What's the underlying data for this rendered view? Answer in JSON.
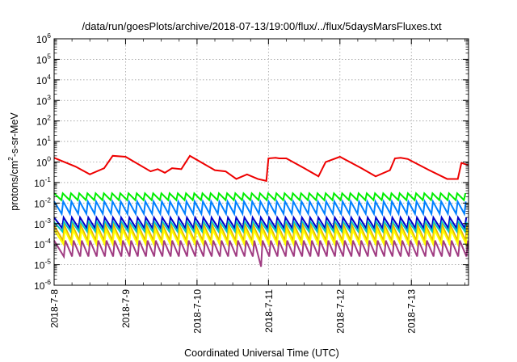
{
  "chart_data": {
    "type": "line",
    "title": "/data/run/goesPlots/archive/2018-07-13/19:00/flux/../flux/5daysMarsFluxes.txt",
    "xlabel": "Coordinated Universal Time (UTC)",
    "ylabel": "protons/cm²-s-sr-MeV",
    "ylabel_parts": [
      "protons/cm",
      "2",
      "-s-sr-MeV"
    ],
    "yscale": "log",
    "ylim": [
      1e-06,
      1000000
    ],
    "xlim_days": [
      0,
      5.8
    ],
    "grid": true,
    "legend": "none",
    "y_ticks": [
      {
        "value": 1e-06,
        "base": "10",
        "exp": "-6"
      },
      {
        "value": 1e-05,
        "base": "10",
        "exp": "-5"
      },
      {
        "value": 0.0001,
        "base": "10",
        "exp": "-4"
      },
      {
        "value": 0.001,
        "base": "10",
        "exp": "-3"
      },
      {
        "value": 0.01,
        "base": "10",
        "exp": "-2"
      },
      {
        "value": 0.1,
        "base": "10",
        "exp": "-1"
      },
      {
        "value": 1,
        "base": "10",
        "exp": "0"
      },
      {
        "value": 10,
        "base": "10",
        "exp": "1"
      },
      {
        "value": 100,
        "base": "10",
        "exp": "2"
      },
      {
        "value": 1000,
        "base": "10",
        "exp": "3"
      },
      {
        "value": 10000,
        "base": "10",
        "exp": "4"
      },
      {
        "value": 100000,
        "base": "10",
        "exp": "5"
      },
      {
        "value": 1000000,
        "base": "10",
        "exp": "6"
      }
    ],
    "x_ticks": [
      {
        "day": 0,
        "label": "2018-7-8"
      },
      {
        "day": 1,
        "label": "2018-7-9"
      },
      {
        "day": 2,
        "label": "2018-7-10"
      },
      {
        "day": 3,
        "label": "2018-7-11"
      },
      {
        "day": 4,
        "label": "2018-7-12"
      },
      {
        "day": 5,
        "label": "2018-7-13"
      }
    ],
    "series": [
      {
        "color": "#ee0000",
        "style": "sawtooth",
        "start": 1.6,
        "end": 0.7,
        "dips": [
          [
            0.3,
            0.6
          ],
          [
            0.5,
            0.25
          ],
          [
            0.7,
            0.5
          ],
          [
            0.82,
            2.0
          ],
          [
            1.0,
            1.8
          ],
          [
            1.35,
            0.35
          ],
          [
            1.45,
            0.45
          ],
          [
            1.55,
            0.3
          ],
          [
            1.65,
            0.5
          ],
          [
            1.78,
            0.45
          ],
          [
            1.9,
            2.0
          ],
          [
            2.25,
            0.4
          ],
          [
            2.4,
            0.35
          ],
          [
            2.55,
            0.15
          ],
          [
            2.7,
            0.25
          ],
          [
            2.85,
            0.15
          ],
          [
            2.97,
            0.12
          ],
          [
            3.0,
            1.5
          ],
          [
            3.1,
            1.6
          ],
          [
            3.15,
            1.5
          ],
          [
            3.25,
            1.5
          ],
          [
            3.5,
            0.5
          ],
          [
            3.7,
            0.2
          ],
          [
            3.8,
            1.0
          ],
          [
            4.0,
            1.8
          ],
          [
            4.3,
            0.5
          ],
          [
            4.5,
            0.2
          ],
          [
            4.7,
            0.4
          ],
          [
            4.77,
            1.5
          ],
          [
            4.85,
            1.6
          ],
          [
            4.95,
            1.4
          ],
          [
            5.25,
            0.4
          ],
          [
            5.5,
            0.15
          ],
          [
            5.65,
            0.15
          ],
          [
            5.7,
            0.9
          ],
          [
            5.8,
            0.7
          ]
        ]
      },
      {
        "color": "#00ee00",
        "style": "zigzag",
        "high": 0.03,
        "low": 0.014,
        "period": 0.115
      },
      {
        "color": "#0080ff",
        "style": "zigzag",
        "high": 0.012,
        "low": 0.003,
        "period": 0.115
      },
      {
        "color": "#0000c8",
        "style": "zigzag",
        "high": 0.002,
        "low": 0.0006,
        "period": 0.115
      },
      {
        "color": "#00c8c8",
        "style": "zigzag",
        "high": 0.0012,
        "low": 0.0004,
        "period": 0.115
      },
      {
        "color": "#e6b400",
        "style": "zigzag",
        "high": 0.0008,
        "low": 0.00015,
        "period": 0.115
      },
      {
        "color": "#ffff00",
        "style": "zigzag",
        "high": 0.0005,
        "low": 0.0001,
        "period": 0.115
      },
      {
        "color": "#a03c82",
        "style": "decay",
        "high": 0.00015,
        "low": 2.5e-05,
        "period": 0.115,
        "event_day": 2.85,
        "event_low": 8e-06
      }
    ]
  }
}
